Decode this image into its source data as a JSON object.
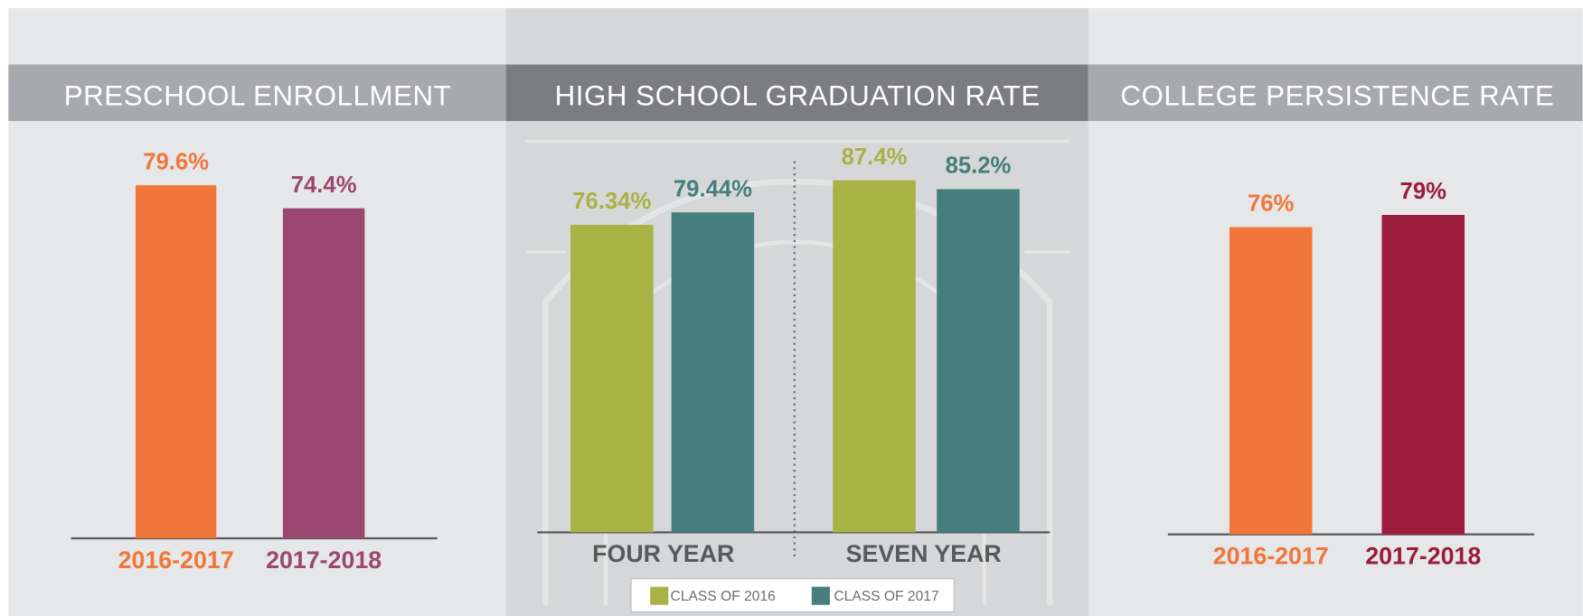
{
  "chart_data": [
    {
      "type": "bar",
      "title": "PRESCHOOL ENROLLMENT",
      "categories": [
        "2016-2017",
        "2017-2018"
      ],
      "values": [
        79.6,
        74.4
      ],
      "value_labels": [
        "79.6%",
        "74.4%"
      ],
      "colors": [
        "#f1763a",
        "#9b4770"
      ]
    },
    {
      "type": "grouped-bar",
      "title": "HIGH SCHOOL GRADUATION RATE",
      "categories": [
        "FOUR YEAR",
        "SEVEN YEAR"
      ],
      "series": [
        {
          "name": "CLASS OF 2016",
          "color": "#a9b245",
          "values": [
            76.34,
            87.4
          ],
          "value_labels": [
            "76.34%",
            "87.4%"
          ]
        },
        {
          "name": "CLASS OF 2017",
          "color": "#457e7c",
          "values": [
            79.44,
            85.2
          ],
          "value_labels": [
            "79.44%",
            "85.2%"
          ]
        }
      ]
    },
    {
      "type": "bar",
      "title": "COLLEGE PERSISTENCE RATE",
      "categories": [
        "2016-2017",
        "2017-2018"
      ],
      "values": [
        76,
        79
      ],
      "value_labels": [
        "76%",
        "79%"
      ],
      "colors": [
        "#f1763a",
        "#9b1b3b"
      ]
    }
  ]
}
